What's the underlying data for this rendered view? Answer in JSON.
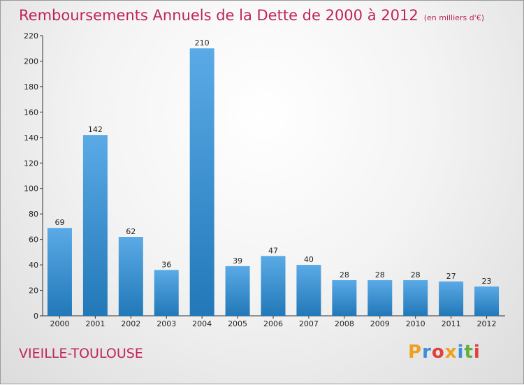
{
  "title": "Remboursements Annuels de la Dette de 2000 à 2012",
  "subtitle": "(en milliers d'€)",
  "commune": "VIEILLE-TOULOUSE",
  "logo": {
    "text": "Proxiti",
    "letters": [
      {
        "char": "P",
        "color": "#f0a020"
      },
      {
        "char": "r",
        "color": "#3a8fd8"
      },
      {
        "char": "o",
        "color": "#e04040"
      },
      {
        "char": "x",
        "color": "#f0a020"
      },
      {
        "char": "i",
        "color": "#3a8fd8"
      },
      {
        "char": "t",
        "color": "#60b040"
      },
      {
        "char": "i",
        "color": "#e04040"
      }
    ]
  },
  "colors": {
    "title": "#c0245a",
    "bar_top": "#5aaae6",
    "bar_bottom": "#2278b8"
  },
  "chart_data": {
    "type": "bar",
    "categories": [
      "2000",
      "2001",
      "2002",
      "2003",
      "2004",
      "2005",
      "2006",
      "2007",
      "2008",
      "2009",
      "2010",
      "2011",
      "2012"
    ],
    "values": [
      69,
      142,
      62,
      36,
      210,
      39,
      47,
      40,
      28,
      28,
      28,
      27,
      23
    ],
    "ylim": [
      0,
      220
    ],
    "yticks": [
      0,
      20,
      40,
      60,
      80,
      100,
      120,
      140,
      160,
      180,
      200,
      220
    ],
    "grid": false,
    "data_labels": true
  }
}
